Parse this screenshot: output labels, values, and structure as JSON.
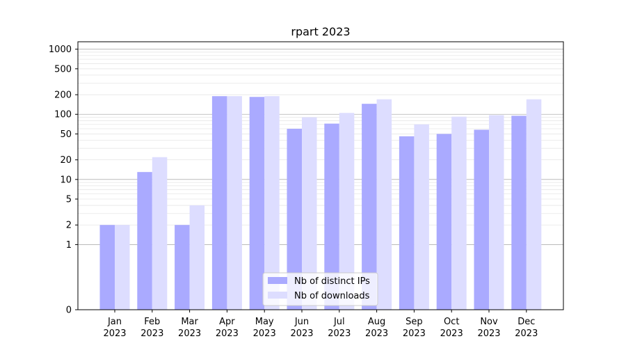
{
  "chart_data": {
    "type": "bar",
    "title": "rpart 2023",
    "xlabel": "",
    "ylabel": "",
    "y_scale": "symlog",
    "ylim": [
      0,
      1300
    ],
    "y_ticks": [
      0,
      1,
      2,
      5,
      10,
      20,
      50,
      100,
      200,
      500,
      1000
    ],
    "y_tick_labels": [
      "0",
      "1",
      "2",
      "5",
      "10",
      "20",
      "50",
      "100",
      "200",
      "500",
      "1000"
    ],
    "categories": [
      {
        "month": "Jan",
        "year": "2023"
      },
      {
        "month": "Feb",
        "year": "2023"
      },
      {
        "month": "Mar",
        "year": "2023"
      },
      {
        "month": "Apr",
        "year": "2023"
      },
      {
        "month": "May",
        "year": "2023"
      },
      {
        "month": "Jun",
        "year": "2023"
      },
      {
        "month": "Jul",
        "year": "2023"
      },
      {
        "month": "Aug",
        "year": "2023"
      },
      {
        "month": "Sep",
        "year": "2023"
      },
      {
        "month": "Oct",
        "year": "2023"
      },
      {
        "month": "Nov",
        "year": "2023"
      },
      {
        "month": "Dec",
        "year": "2023"
      }
    ],
    "series": [
      {
        "name": "Nb of distinct IPs",
        "color": "#aaaaff",
        "values": [
          2,
          13,
          2,
          190,
          185,
          60,
          72,
          145,
          46,
          50,
          58,
          95
        ]
      },
      {
        "name": "Nb of downloads",
        "color": "#ddddff",
        "values": [
          2,
          22,
          4,
          190,
          190,
          90,
          105,
          170,
          70,
          92,
          97,
          170
        ]
      }
    ],
    "grid": true,
    "legend_position": "lower center"
  }
}
